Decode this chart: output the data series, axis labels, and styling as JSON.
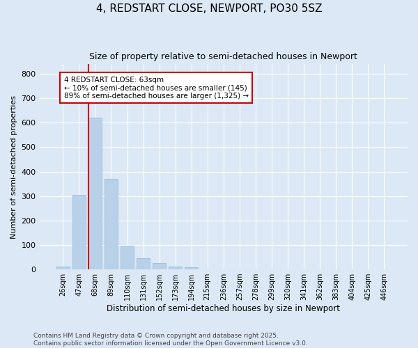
{
  "title1": "4, REDSTART CLOSE, NEWPORT, PO30 5SZ",
  "title2": "Size of property relative to semi-detached houses in Newport",
  "xlabel": "Distribution of semi-detached houses by size in Newport",
  "ylabel": "Number of semi-detached properties",
  "categories": [
    "26sqm",
    "47sqm",
    "68sqm",
    "89sqm",
    "110sqm",
    "131sqm",
    "152sqm",
    "173sqm",
    "194sqm",
    "215sqm",
    "236sqm",
    "257sqm",
    "278sqm",
    "299sqm",
    "320sqm",
    "341sqm",
    "362sqm",
    "383sqm",
    "404sqm",
    "425sqm",
    "446sqm"
  ],
  "values": [
    12,
    305,
    620,
    370,
    98,
    47,
    25,
    12,
    8,
    0,
    0,
    0,
    0,
    0,
    0,
    0,
    0,
    0,
    0,
    0,
    0
  ],
  "bar_color": "#b8d0e8",
  "bar_edge_color": "#96b8d8",
  "bg_color": "#dce8f5",
  "annotation_text": "4 REDSTART CLOSE: 63sqm\n← 10% of semi-detached houses are smaller (145)\n89% of semi-detached houses are larger (1,325) →",
  "annotation_box_color": "#ffffff",
  "annotation_border_color": "#cc0000",
  "redline_x": 2.0,
  "footer1": "Contains HM Land Registry data © Crown copyright and database right 2025.",
  "footer2": "Contains public sector information licensed under the Open Government Licence v3.0.",
  "ylim": [
    0,
    840
  ],
  "yticks": [
    0,
    100,
    200,
    300,
    400,
    500,
    600,
    700,
    800
  ],
  "title1_fontsize": 11,
  "title2_fontsize": 9,
  "xlabel_fontsize": 8.5,
  "ylabel_fontsize": 8,
  "tick_fontsize": 7,
  "footer_fontsize": 6.5
}
